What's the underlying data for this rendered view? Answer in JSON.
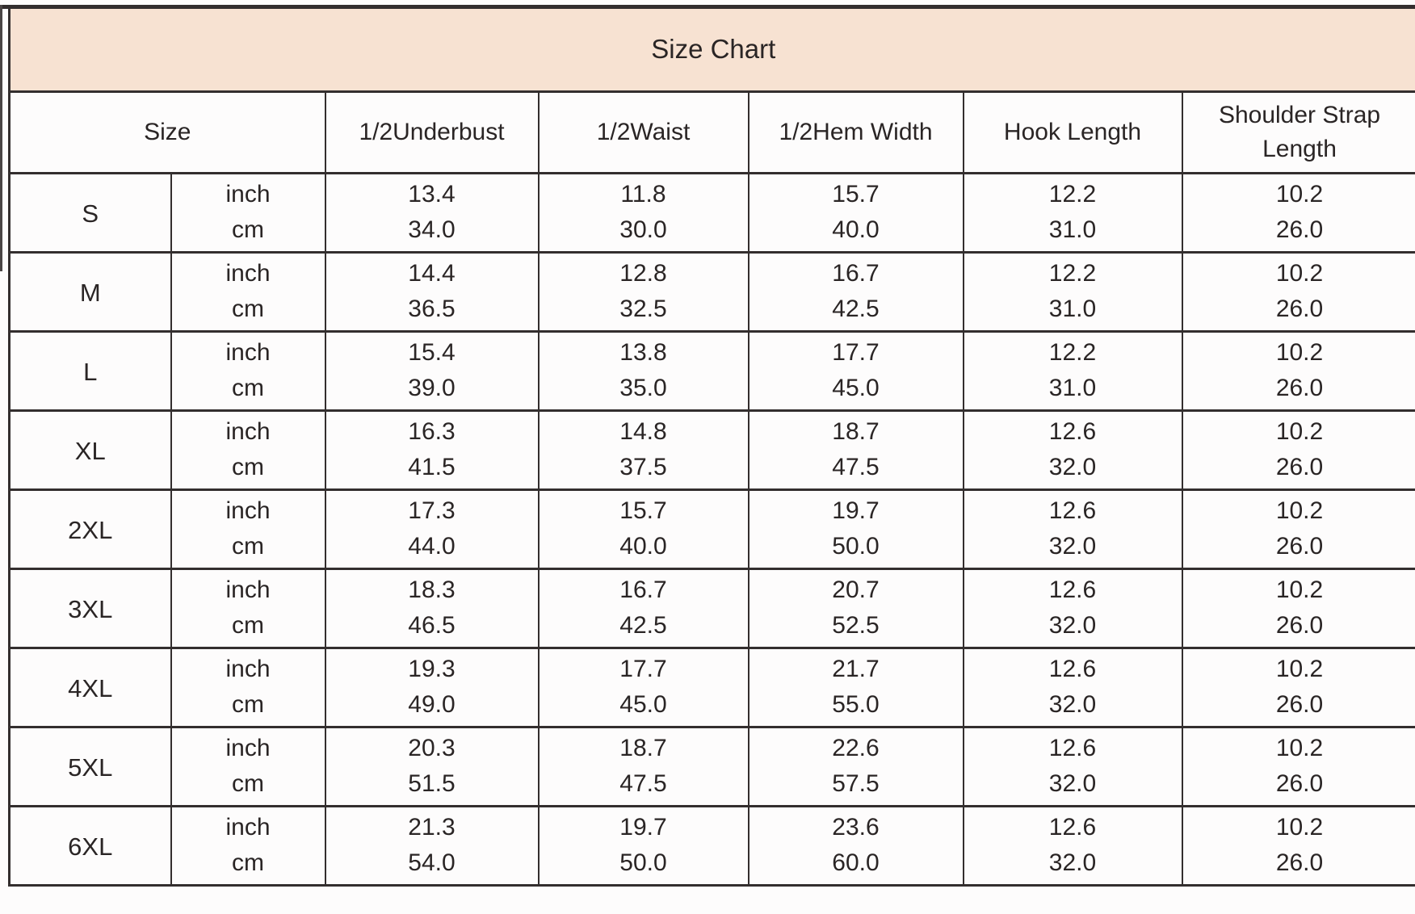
{
  "colors": {
    "title_background": "#f7e2d2",
    "border": "#332e2e",
    "text": "#2a2525",
    "page_background": "#fdfcfc"
  },
  "chart_data": {
    "type": "table",
    "title": "Size Chart",
    "header": {
      "size_label": "Size",
      "measures": [
        "1/2Underbust",
        "1/2Waist",
        "1/2Hem Width",
        "Hook Length",
        "Shoulder Strap Length"
      ]
    },
    "unit_labels": {
      "inch": "inch",
      "cm": "cm"
    },
    "sizes": [
      {
        "size": "S",
        "inch": [
          "13.4",
          "11.8",
          "15.7",
          "12.2",
          "10.2"
        ],
        "cm": [
          "34.0",
          "30.0",
          "40.0",
          "31.0",
          "26.0"
        ]
      },
      {
        "size": "M",
        "inch": [
          "14.4",
          "12.8",
          "16.7",
          "12.2",
          "10.2"
        ],
        "cm": [
          "36.5",
          "32.5",
          "42.5",
          "31.0",
          "26.0"
        ]
      },
      {
        "size": "L",
        "inch": [
          "15.4",
          "13.8",
          "17.7",
          "12.2",
          "10.2"
        ],
        "cm": [
          "39.0",
          "35.0",
          "45.0",
          "31.0",
          "26.0"
        ]
      },
      {
        "size": "XL",
        "inch": [
          "16.3",
          "14.8",
          "18.7",
          "12.6",
          "10.2"
        ],
        "cm": [
          "41.5",
          "37.5",
          "47.5",
          "32.0",
          "26.0"
        ]
      },
      {
        "size": "2XL",
        "inch": [
          "17.3",
          "15.7",
          "19.7",
          "12.6",
          "10.2"
        ],
        "cm": [
          "44.0",
          "40.0",
          "50.0",
          "32.0",
          "26.0"
        ]
      },
      {
        "size": "3XL",
        "inch": [
          "18.3",
          "16.7",
          "20.7",
          "12.6",
          "10.2"
        ],
        "cm": [
          "46.5",
          "42.5",
          "52.5",
          "32.0",
          "26.0"
        ]
      },
      {
        "size": "4XL",
        "inch": [
          "19.3",
          "17.7",
          "21.7",
          "12.6",
          "10.2"
        ],
        "cm": [
          "49.0",
          "45.0",
          "55.0",
          "32.0",
          "26.0"
        ]
      },
      {
        "size": "5XL",
        "inch": [
          "20.3",
          "18.7",
          "22.6",
          "12.6",
          "10.2"
        ],
        "cm": [
          "51.5",
          "47.5",
          "57.5",
          "32.0",
          "26.0"
        ]
      },
      {
        "size": "6XL",
        "inch": [
          "21.3",
          "19.7",
          "23.6",
          "12.6",
          "10.2"
        ],
        "cm": [
          "54.0",
          "50.0",
          "60.0",
          "32.0",
          "26.0"
        ]
      }
    ]
  }
}
